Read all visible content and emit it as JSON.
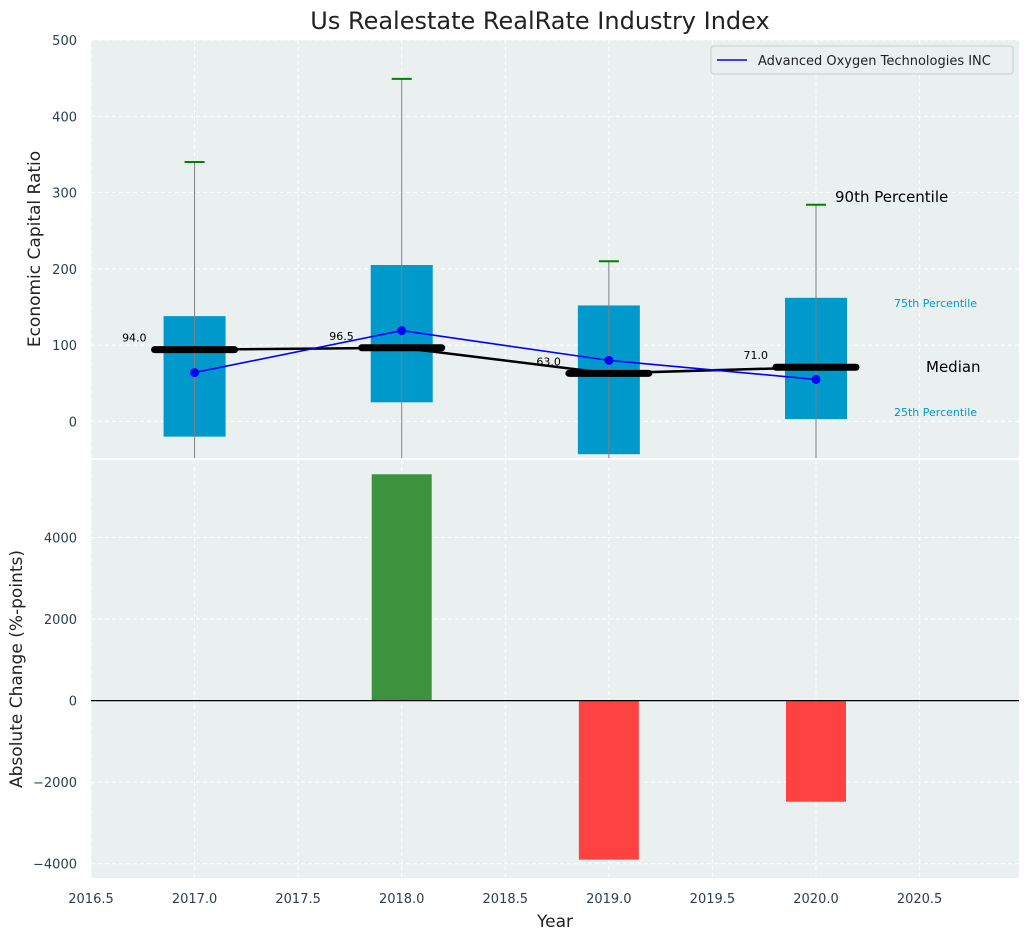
{
  "chart_data": [
    {
      "type": "bar",
      "title": "Us Realestate RealRate Industry Index",
      "ylabel": "Economic Capital Ratio",
      "xlim": [
        2016.5,
        2020.98
      ],
      "ylim": [
        -48,
        500
      ],
      "yticks": [
        0,
        100,
        200,
        300,
        400,
        500
      ],
      "grid": true,
      "legend_position": "top-right",
      "years": [
        2017,
        2018,
        2019,
        2020
      ],
      "percentile_bars": {
        "p25": [
          -20,
          25,
          -43,
          3
        ],
        "p75": [
          138,
          205,
          152,
          162
        ],
        "p90": [
          340,
          449,
          210,
          284
        ],
        "color": "#0099cc",
        "whisker_color": "#008000"
      },
      "median": {
        "values": [
          94.0,
          96.5,
          63.0,
          71.0
        ],
        "labels": [
          "94.0",
          "96.5",
          "63.0",
          "71.0"
        ],
        "color": "#000000"
      },
      "series": [
        {
          "name": "Advanced Oxygen Technologies INC",
          "values": [
            64,
            119,
            80,
            55
          ],
          "color": "#0000ff"
        }
      ],
      "annotations": {
        "p90": "90th Percentile",
        "p75": "75th Percentile",
        "median": "Median",
        "p25": "25th Percentile"
      }
    },
    {
      "type": "bar",
      "xlabel": "Year",
      "ylabel": "Absolute Change (%-points)",
      "xlim": [
        2016.5,
        2020.98
      ],
      "ylim": [
        -4350,
        5900
      ],
      "yticks": [
        -4000,
        -2000,
        0,
        2000,
        4000
      ],
      "ytick_labels": [
        "−4000",
        "−2000",
        "0",
        "2000",
        "4000"
      ],
      "xticks": [
        2016.5,
        2017.0,
        2017.5,
        2018.0,
        2018.5,
        2019.0,
        2019.5,
        2020.0,
        2020.5
      ],
      "xtick_labels": [
        "2016.5",
        "2017.0",
        "2017.5",
        "2018.0",
        "2018.5",
        "2019.0",
        "2019.5",
        "2020.0",
        "2020.5"
      ],
      "grid": true,
      "categories": [
        2018,
        2019,
        2020
      ],
      "values": [
        5550,
        -3900,
        -2480
      ],
      "colors": {
        "positive": "#2e8b2e",
        "negative": "#ff3333"
      }
    }
  ]
}
